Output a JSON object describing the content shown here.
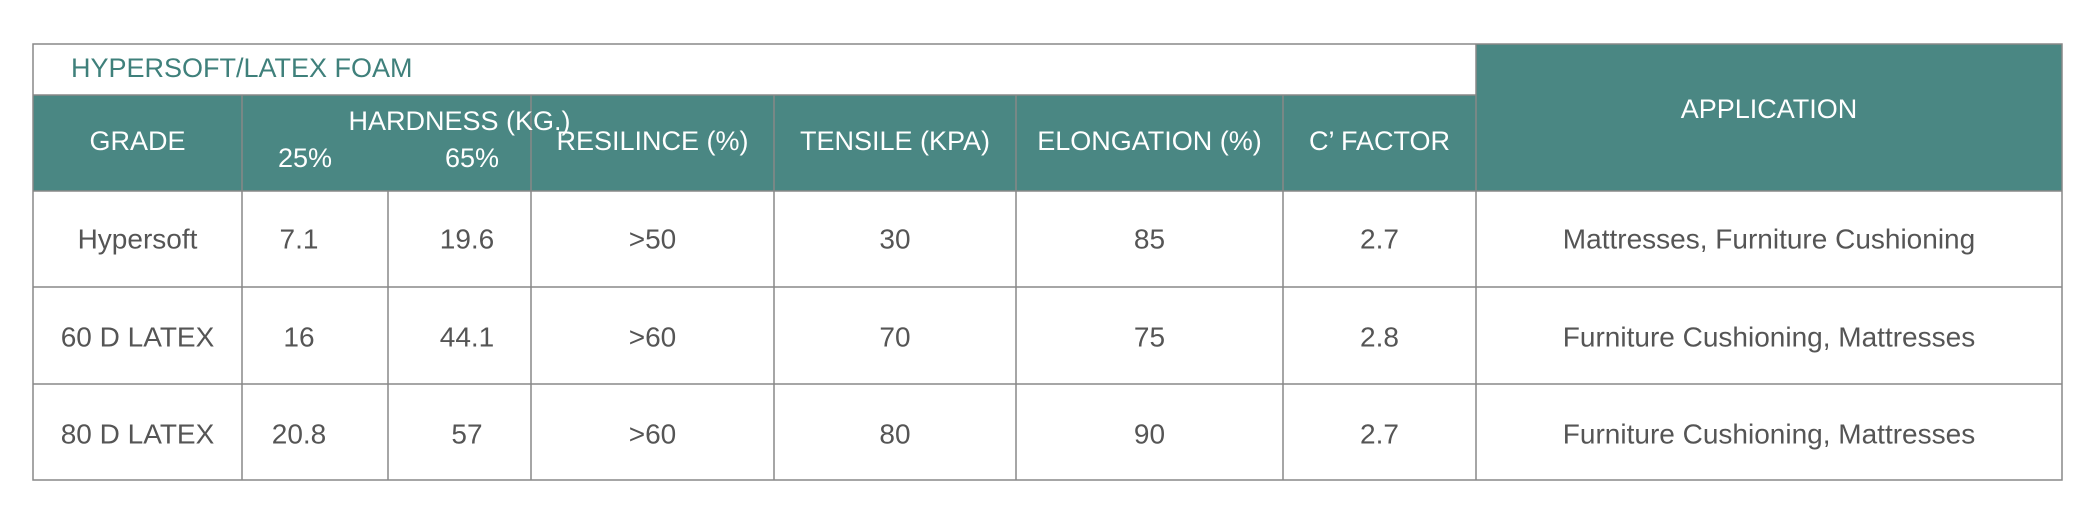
{
  "table": {
    "title": "HYPERSOFT/LATEX FOAM",
    "headers": [
      "GRADE",
      "HARDNESS (KG.)",
      "RESILINCE (%)",
      "TENSILE (KPA)",
      "ELONGATION (%)",
      "C’ FACTOR",
      "APPLICATION"
    ],
    "subheaders": [
      "25%",
      "65%"
    ],
    "rows": [
      [
        "Hypersoft",
        "7.1",
        "19.6",
        ">50",
        "30",
        "85",
        "2.7",
        "Mattresses, Furniture Cushioning"
      ],
      [
        "60 D LATEX",
        "16",
        "44.1",
        ">60",
        "70",
        "75",
        "2.8",
        "Furniture Cushioning, Mattresses"
      ],
      [
        "80 D LATEX",
        "20.8",
        "57",
        ">60",
        "80",
        "90",
        "2.7",
        "Furniture Cushioning, Mattresses"
      ]
    ]
  }
}
